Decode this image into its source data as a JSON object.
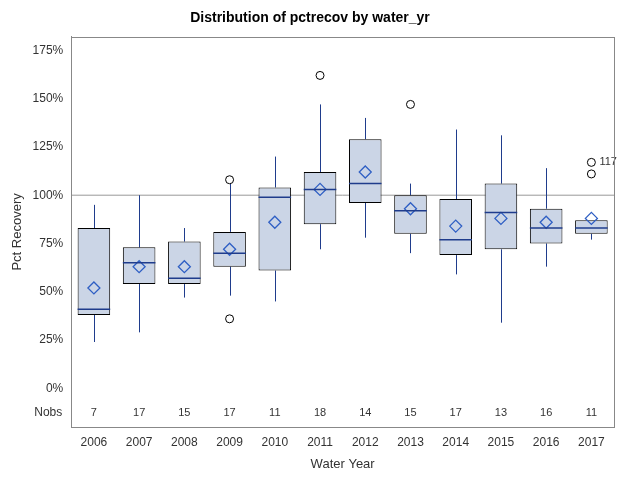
{
  "chart_data": {
    "type": "box",
    "title": "Distribution of pctrecov by water_yr",
    "x_label": "Water Year",
    "y_label": "Pct Recovery",
    "categories": [
      "2006",
      "2007",
      "2008",
      "2009",
      "2010",
      "2011",
      "2012",
      "2013",
      "2014",
      "2015",
      "2016",
      "2017"
    ],
    "boxes": [
      {
        "whisker_low": 24,
        "q1": 38,
        "median": 41,
        "q3": 83,
        "whisker_high": 95,
        "mean": 52,
        "outliers": []
      },
      {
        "whisker_low": 29,
        "q1": 54,
        "median": 65,
        "q3": 73,
        "whisker_high": 100,
        "mean": 63,
        "outliers": []
      },
      {
        "whisker_low": 47,
        "q1": 54,
        "median": 57,
        "q3": 76,
        "whisker_high": 83,
        "mean": 63,
        "outliers": []
      },
      {
        "whisker_low": 48,
        "q1": 63,
        "median": 70,
        "q3": 81,
        "whisker_high": 106,
        "mean": 72,
        "outliers": [
          36,
          108
        ]
      },
      {
        "whisker_low": 45,
        "q1": 61,
        "median": 99,
        "q3": 104,
        "whisker_high": 120,
        "mean": 86,
        "outliers": []
      },
      {
        "whisker_low": 72,
        "q1": 85,
        "median": 103,
        "q3": 112,
        "whisker_high": 147,
        "mean": 103,
        "outliers": [
          162
        ]
      },
      {
        "whisker_low": 78,
        "q1": 96,
        "median": 106,
        "q3": 129,
        "whisker_high": 140,
        "mean": 112,
        "outliers": []
      },
      {
        "whisker_low": 70,
        "q1": 80,
        "median": 92,
        "q3": 100,
        "whisker_high": 106,
        "mean": 93,
        "outliers": [
          147
        ]
      },
      {
        "whisker_low": 59,
        "q1": 69,
        "median": 77,
        "q3": 98,
        "whisker_high": 134,
        "mean": 84,
        "outliers": []
      },
      {
        "whisker_low": 34,
        "q1": 72,
        "median": 91,
        "q3": 106,
        "whisker_high": 131,
        "mean": 88,
        "outliers": []
      },
      {
        "whisker_low": 63,
        "q1": 75,
        "median": 83,
        "q3": 93,
        "whisker_high": 114,
        "mean": 86,
        "outliers": []
      },
      {
        "whisker_low": 77,
        "q1": 80,
        "median": 83,
        "q3": 87,
        "whisker_high": 87,
        "mean": 88,
        "outliers": [
          111,
          117
        ]
      }
    ],
    "nobs_label": "Nobs",
    "nobs": [
      7,
      17,
      15,
      17,
      11,
      18,
      14,
      15,
      17,
      13,
      16,
      11
    ],
    "reference_line": 100,
    "annotations": [
      {
        "text": "117",
        "category": "2017",
        "y": 117
      }
    ],
    "ylim": [
      -20,
      182
    ],
    "yticks": [
      {
        "value": 0,
        "label": "0%"
      },
      {
        "value": 25,
        "label": "25%"
      },
      {
        "value": 50,
        "label": "50%"
      },
      {
        "value": 75,
        "label": "75%"
      },
      {
        "value": 100,
        "label": "100%"
      },
      {
        "value": 125,
        "label": "125%"
      },
      {
        "value": 150,
        "label": "150%"
      },
      {
        "value": 175,
        "label": "175%"
      }
    ],
    "grid": false,
    "color": "#cbd5e6",
    "marker": "diamond"
  }
}
